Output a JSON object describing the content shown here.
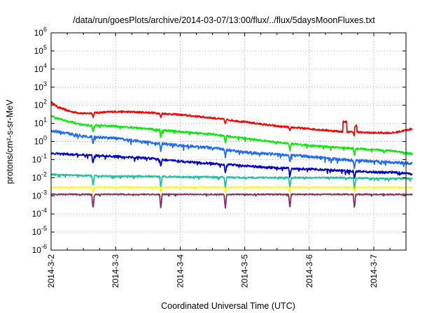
{
  "chart_data": {
    "type": "line",
    "title": "/data/run/goesPlots/archive/2014-03-07/13:00/flux/../flux/5daysMoonFluxes.txt",
    "xlabel": "Coordinated Universal Time (UTC)",
    "ylabel": "protons/cm²-s-sr-MeV",
    "y_scale": "log",
    "ylim_exponent": [
      -6,
      6
    ],
    "y_ticks": [
      {
        "base": "10",
        "exp": "-6"
      },
      {
        "base": "10",
        "exp": "-5"
      },
      {
        "base": "10",
        "exp": "-4"
      },
      {
        "base": "10",
        "exp": "-3"
      },
      {
        "base": "10",
        "exp": "-2"
      },
      {
        "base": "10",
        "exp": "-1"
      },
      {
        "base": "10",
        "exp": "0"
      },
      {
        "base": "10",
        "exp": "1"
      },
      {
        "base": "10",
        "exp": "2"
      },
      {
        "base": "10",
        "exp": "3"
      },
      {
        "base": "10",
        "exp": "4"
      },
      {
        "base": "10",
        "exp": "5"
      },
      {
        "base": "10",
        "exp": "6"
      }
    ],
    "x_range_days": [
      0,
      5.6
    ],
    "x_tick_labels": [
      "2014-3-2",
      "2014-3-3",
      "2014-3-4",
      "2014-3-5",
      "2014-3-6",
      "2014-3-7"
    ],
    "grid": true,
    "legend": "none",
    "series": [
      {
        "color": "#ff0000",
        "x": [
          0,
          0.1,
          0.3,
          0.5,
          1,
          1.5,
          2,
          2.5,
          3,
          3.5,
          4,
          4.5,
          5,
          5.3,
          5.6
        ],
        "y": [
          150,
          80,
          45,
          35,
          45,
          40,
          30,
          20,
          12,
          7,
          5,
          3.5,
          3,
          3,
          5
        ]
      },
      {
        "color": "#00ee00",
        "x": [
          0,
          0.2,
          0.5,
          1,
          1.5,
          2,
          2.5,
          3,
          3.5,
          4,
          4.5,
          5,
          5.3,
          5.6
        ],
        "y": [
          25,
          15,
          8,
          7,
          5,
          3.5,
          2.5,
          1.5,
          0.9,
          0.6,
          0.45,
          0.35,
          0.3,
          0.2
        ]
      },
      {
        "color": "#1e6cff",
        "x": [
          0,
          0.2,
          0.5,
          1,
          1.5,
          2,
          2.5,
          3,
          3.5,
          4,
          4.5,
          5,
          5.3,
          5.6
        ],
        "y": [
          4,
          3,
          2,
          1.5,
          0.9,
          0.6,
          0.45,
          0.25,
          0.2,
          0.15,
          0.1,
          0.08,
          0.07,
          0.06
        ]
      },
      {
        "color": "#0000cc",
        "x": [
          0,
          0.5,
          1,
          1.5,
          2,
          2.5,
          3,
          3.5,
          4,
          4.5,
          5,
          5.3,
          5.6
        ],
        "y": [
          0.22,
          0.18,
          0.15,
          0.12,
          0.08,
          0.06,
          0.045,
          0.035,
          0.03,
          0.025,
          0.02,
          0.02,
          0.016
        ]
      },
      {
        "color": "#20c0a0",
        "x": [
          0,
          0.5,
          1,
          1.5,
          2,
          2.5,
          3,
          3.5,
          4,
          4.5,
          5,
          5.6
        ],
        "y": [
          0.015,
          0.013,
          0.012,
          0.012,
          0.011,
          0.011,
          0.01,
          0.01,
          0.01,
          0.01,
          0.009,
          0.009
        ]
      },
      {
        "color": "#ffff00",
        "x": [
          0,
          1,
          2,
          3,
          4,
          5,
          5.6
        ],
        "y": [
          0.003,
          0.003,
          0.003,
          0.003,
          0.003,
          0.003,
          0.003
        ]
      },
      {
        "color": "#8b2c5c",
        "x": [
          0,
          1,
          2,
          3,
          4,
          5,
          5.6
        ],
        "y": [
          0.0012,
          0.0012,
          0.0012,
          0.0012,
          0.0012,
          0.0012,
          0.0012
        ]
      }
    ],
    "dips_x": [
      0.65,
      1.7,
      2.7,
      3.7,
      4.7
    ]
  }
}
